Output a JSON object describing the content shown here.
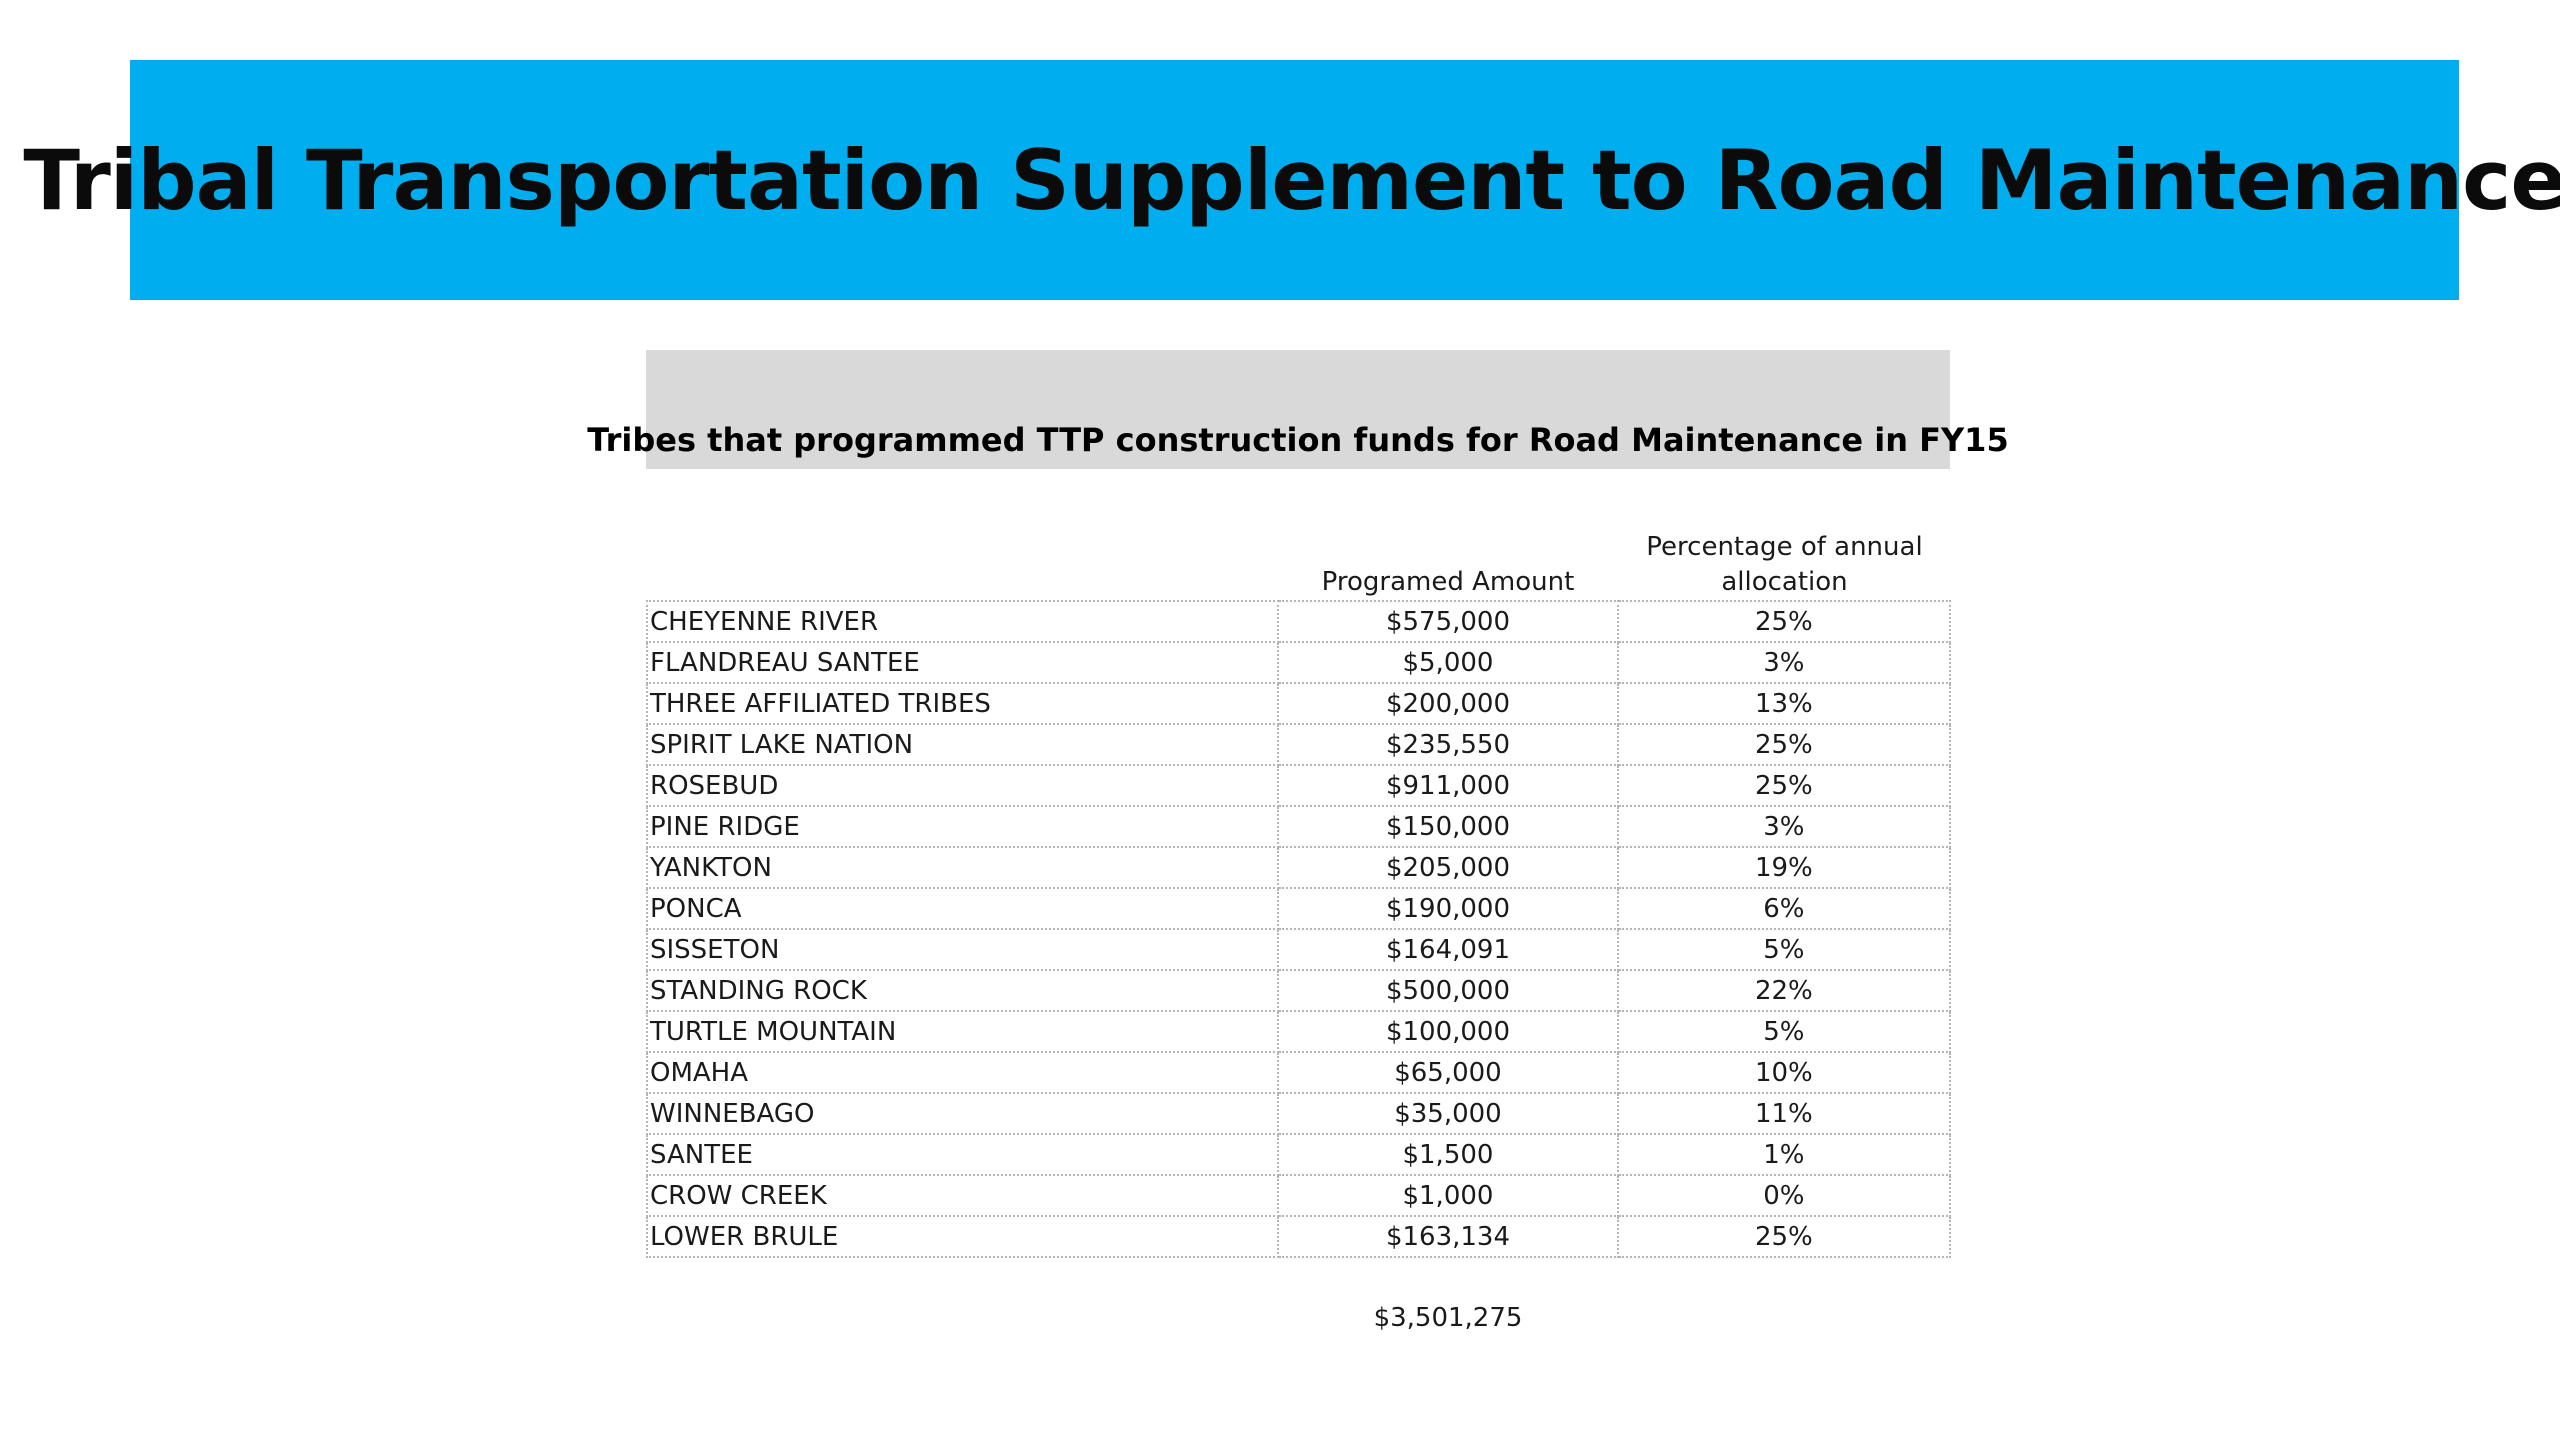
{
  "slide": {
    "title": "Tribal Transportation Supplement to Road Maintenance",
    "banner_color": "#00aeef",
    "subheader": "Tribes that programmed TTP construction funds for Road Maintenance in FY15",
    "subheader_color": "#d9d9d9"
  },
  "table": {
    "headers": {
      "amount": "Programed Amount",
      "percentage": "Percentage of annual allocation"
    },
    "rows": [
      {
        "name": "CHEYENNE RIVER",
        "amount": "$575,000",
        "percentage": "25%"
      },
      {
        "name": "FLANDREAU SANTEE",
        "amount": "$5,000",
        "percentage": "3%"
      },
      {
        "name": "THREE AFFILIATED TRIBES",
        "amount": "$200,000",
        "percentage": "13%"
      },
      {
        "name": "SPIRIT LAKE NATION",
        "amount": "$235,550",
        "percentage": "25%"
      },
      {
        "name": "ROSEBUD",
        "amount": "$911,000",
        "percentage": "25%"
      },
      {
        "name": "PINE RIDGE",
        "amount": "$150,000",
        "percentage": "3%"
      },
      {
        "name": "YANKTON",
        "amount": "$205,000",
        "percentage": "19%"
      },
      {
        "name": "PONCA",
        "amount": "$190,000",
        "percentage": "6%"
      },
      {
        "name": "SISSETON",
        "amount": "$164,091",
        "percentage": "5%"
      },
      {
        "name": "STANDING ROCK",
        "amount": "$500,000",
        "percentage": "22%"
      },
      {
        "name": "TURTLE MOUNTAIN",
        "amount": "$100,000",
        "percentage": "5%"
      },
      {
        "name": "OMAHA",
        "amount": "$65,000",
        "percentage": "10%"
      },
      {
        "name": "WINNEBAGO",
        "amount": "$35,000",
        "percentage": "11%"
      },
      {
        "name": "SANTEE",
        "amount": "$1,500",
        "percentage": "1%"
      },
      {
        "name": "CROW CREEK",
        "amount": "$1,000",
        "percentage": "0%"
      },
      {
        "name": "LOWER BRULE",
        "amount": "$163,134",
        "percentage": "25%"
      }
    ],
    "total": "$3,501,275"
  }
}
